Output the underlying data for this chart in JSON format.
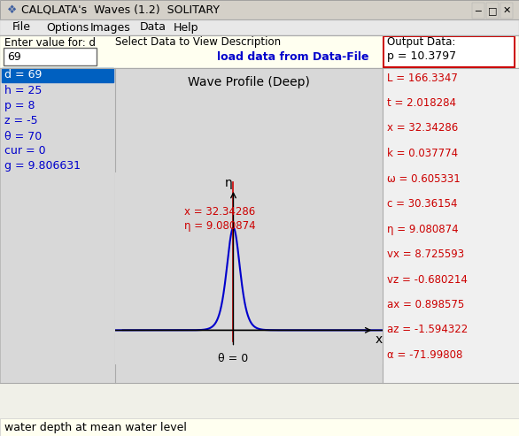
{
  "title": "CALQLATA's  Waves (1.2)  SOLITARY",
  "menu_items": [
    "File",
    "Options",
    "Images",
    "Data",
    "Help"
  ],
  "input_label": "Enter value for: d",
  "input_value": "69",
  "select_label": "Select Data to View Description",
  "link_text": "load data from Data-File",
  "output_label": "Output Data:",
  "output_value": "p = 10.3797",
  "left_params": [
    "d = 69",
    "h = 25",
    "p = 8",
    "z = -5",
    "θ = 70",
    "cur = 0",
    "g = 9.806631"
  ],
  "right_params": [
    "L = 166.3347",
    "t = 2.018284",
    "x = 32.34286",
    "k = 0.037774",
    "ω = 0.605331",
    "c = 30.36154",
    "η = 9.080874",
    "vx = 8.725593",
    "vz = -0.680214",
    "ax = 0.898575",
    "az = -1.594322",
    "α = -71.99808"
  ],
  "wave_title": "Wave Profile (Deep)",
  "annotation_x": "x = 32.34286",
  "annotation_eta": "η = 9.080874",
  "x_label": "x",
  "eta_label": "η",
  "theta_label": "θ = 0",
  "status_bar": "water depth at mean water level",
  "bg_color": "#f0f0e8",
  "wave_bg": "#d8d8d8",
  "left_bg": "#d8d8d8",
  "right_bg": "#f0f0f0",
  "title_bar_bg": "#d0d0d0",
  "menu_bg": "#e8e8e8",
  "input_bg": "#ffffc0",
  "output_border": "#cc0000",
  "blue_color": "#0000cc",
  "red_color": "#cc0000",
  "highlight_bg": "#0060c0",
  "highlight_fg": "#ffffff",
  "fig_width": 5.86,
  "fig_height": 4.93,
  "dpi": 100
}
